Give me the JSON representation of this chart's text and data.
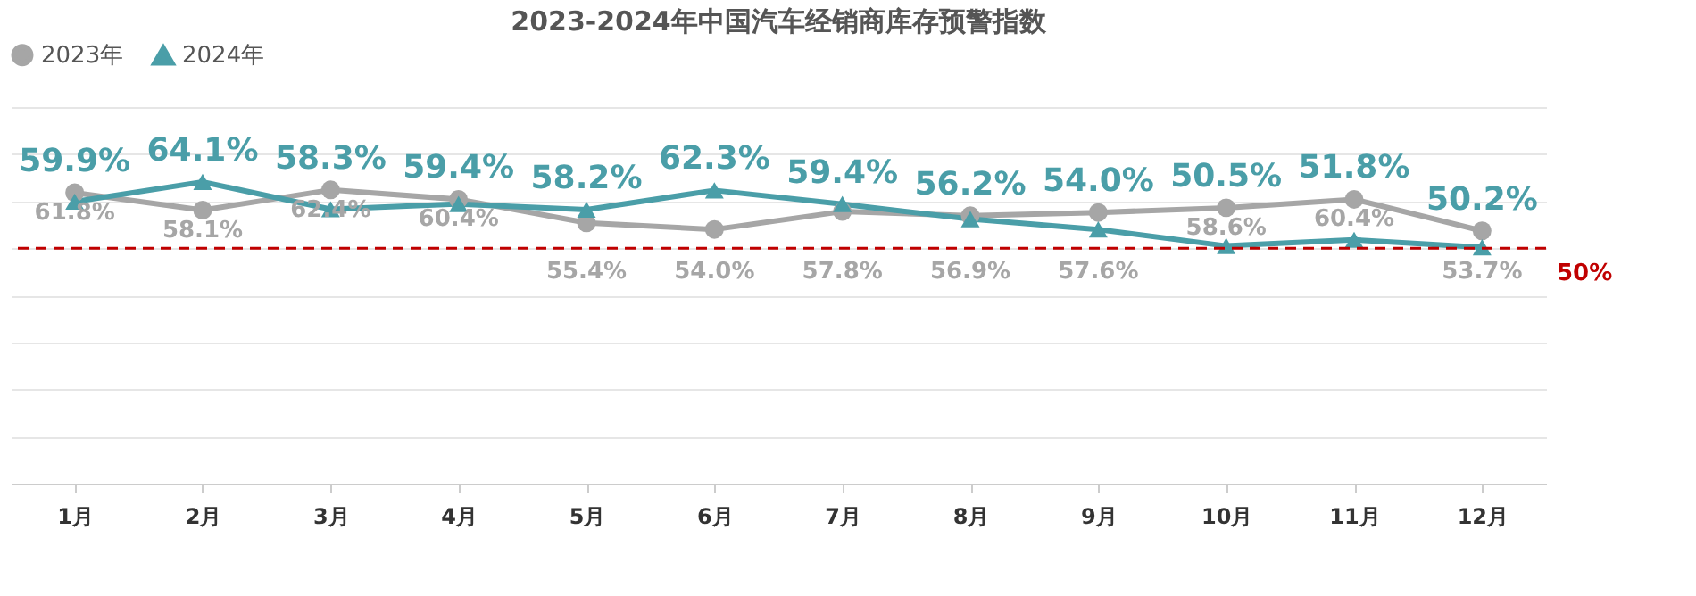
{
  "chart_data": {
    "type": "line",
    "title": "2023-2024年中国汽车经销商库存预警指数",
    "categories": [
      "1月",
      "2月",
      "3月",
      "4月",
      "5月",
      "6月",
      "7月",
      "8月",
      "9月",
      "10月",
      "11月",
      "12月"
    ],
    "series": [
      {
        "name": "2023年",
        "color": "#a6a6a6",
        "marker": "circle",
        "values": [
          61.8,
          58.1,
          62.4,
          60.4,
          55.4,
          54.0,
          57.8,
          56.9,
          57.6,
          58.6,
          60.4,
          53.7
        ],
        "value_labels": [
          "61.8%",
          "58.1%",
          "62.4%",
          "60.4%",
          "55.4%",
          "54.0%",
          "57.8%",
          "56.9%",
          "57.6%",
          "58.6%",
          "60.4%",
          "53.7%"
        ]
      },
      {
        "name": "2024年",
        "color": "#4a9ea8",
        "marker": "triangle",
        "values": [
          59.9,
          64.1,
          58.3,
          59.4,
          58.2,
          62.3,
          59.4,
          56.2,
          54.0,
          50.5,
          51.8,
          50.2
        ],
        "value_labels": [
          "59.9%",
          "64.1%",
          "58.3%",
          "59.4%",
          "58.2%",
          "62.3%",
          "59.4%",
          "56.2%",
          "54.0%",
          "50.5%",
          "51.8%",
          "50.2%"
        ]
      }
    ],
    "ylim": [
      0,
      80
    ],
    "tick_labels": "x",
    "grid": "y",
    "legend": "top",
    "line_style": "solid",
    "ref_lines": [
      {
        "axis": "y",
        "value": 50,
        "label": "50%",
        "color": "#c00000",
        "line_style": "dashed"
      }
    ]
  }
}
